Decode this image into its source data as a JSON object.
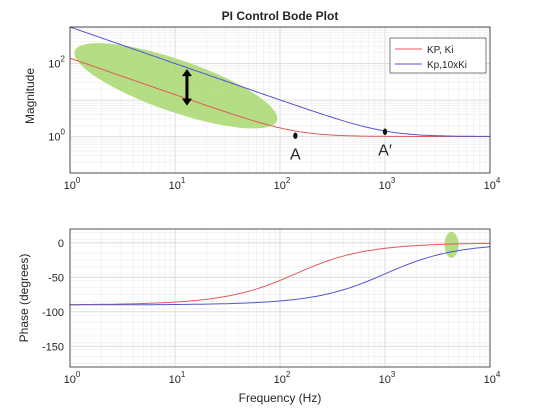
{
  "chart_data": [
    {
      "type": "line",
      "title": "PI Control Bode Plot",
      "xlabel": "",
      "ylabel": "Magnitude",
      "xscale": "log",
      "yscale": "log",
      "xlim": [
        1,
        10000
      ],
      "ylim": [
        0.1,
        1000
      ],
      "x_ticks": [
        {
          "base": "10",
          "exp": "0"
        },
        {
          "base": "10",
          "exp": "1"
        },
        {
          "base": "10",
          "exp": "2"
        },
        {
          "base": "10",
          "exp": "3"
        },
        {
          "base": "10",
          "exp": "4"
        }
      ],
      "y_ticks": [
        {
          "value": 1,
          "base": "10",
          "exp": "0"
        },
        {
          "value": 100,
          "base": "10",
          "exp": "2"
        }
      ],
      "grid": true,
      "legend_position": "top-right",
      "series": [
        {
          "name": "KP, Ki",
          "color": "#e05a5a",
          "kp": 1,
          "corner_hz": 140
        },
        {
          "name": "Kp,10xKi",
          "color": "#5555d0",
          "kp": 1,
          "corner_hz": 1000
        }
      ],
      "points": [
        {
          "label": "A",
          "x": 140,
          "y": 1.05
        },
        {
          "label": "A′",
          "x": 1000,
          "y": 1.35
        }
      ],
      "highlight_color": "#a8d86e",
      "arrow": {
        "x": 13,
        "y_from": 70,
        "y_to": 7
      }
    },
    {
      "type": "line",
      "title": "",
      "xlabel": "Frequency (Hz)",
      "ylabel": "Phase (degrees)",
      "xscale": "log",
      "xlim": [
        1,
        10000
      ],
      "ylim": [
        -180,
        20
      ],
      "x_ticks": [
        {
          "base": "10",
          "exp": "0"
        },
        {
          "base": "10",
          "exp": "1"
        },
        {
          "base": "10",
          "exp": "2"
        },
        {
          "base": "10",
          "exp": "3"
        },
        {
          "base": "10",
          "exp": "4"
        }
      ],
      "y_ticks": [
        {
          "value": 0,
          "label": "0"
        },
        {
          "value": -50,
          "label": "-50"
        },
        {
          "value": -100,
          "label": "-100"
        },
        {
          "value": -150,
          "label": "-150"
        }
      ],
      "grid": true,
      "series": [
        {
          "name": "KP, Ki",
          "color": "#e05a5a",
          "corner_hz": 140
        },
        {
          "name": "Kp,10xKi",
          "color": "#5555d0",
          "corner_hz": 1000
        }
      ],
      "highlight": {
        "x": 4300,
        "y": -3
      }
    }
  ]
}
